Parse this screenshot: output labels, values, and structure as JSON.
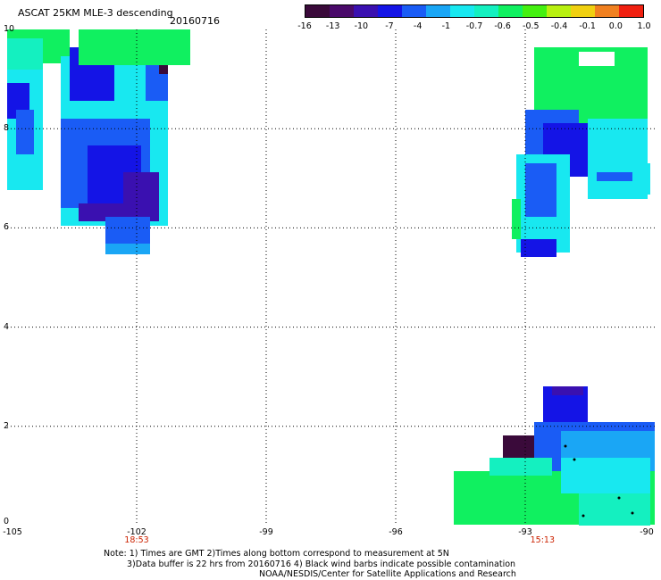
{
  "header": {
    "title": "ASCAT 25KM MLE-3 descending",
    "date": "20160716"
  },
  "colorbar": {
    "labels": [
      "-16",
      "-13",
      "-10",
      "-7",
      "-4",
      "-1",
      "-0.7",
      "-0.6",
      "-0.5",
      "-0.4",
      "-0.1",
      "0.0",
      "1.0"
    ],
    "colors": [
      "#3a0a3a",
      "#4a0a6a",
      "#3a10b0",
      "#1414e6",
      "#1a5cf5",
      "#1aa6f5",
      "#18e8f0",
      "#14f0c0",
      "#10f060",
      "#44f010",
      "#b8f010",
      "#f0d010",
      "#f08020",
      "#f02010"
    ]
  },
  "axes": {
    "lon_labels": [
      "-105",
      "-102",
      "-99",
      "-96",
      "-93",
      "-90"
    ],
    "lon_values": [
      -105,
      -102,
      -99,
      -96,
      -93,
      -90
    ],
    "lat_labels": [
      "0",
      "2",
      "4",
      "6",
      "8",
      "10"
    ],
    "lat_values": [
      0,
      2,
      4,
      6,
      8,
      10
    ],
    "times": [
      {
        "label": "18:53",
        "lon": -102
      },
      {
        "label": "15:13",
        "lon": -92.6
      }
    ]
  },
  "notes": {
    "line1": "Note: 1) Times are GMT 2)Times along bottom correspond to measurement at 5N",
    "line2": "3)Data buffer is 22 hrs from 20160716 4) Black wind barbs indicate possible contamination",
    "line3": "NOAA/NESDIS/Center for Satellite Applications and Research"
  }
}
